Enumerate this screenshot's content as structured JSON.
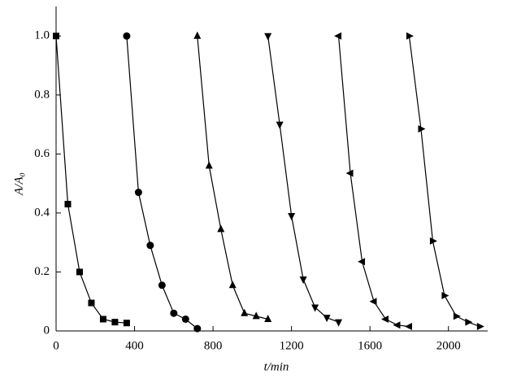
{
  "chart_data": {
    "type": "line",
    "xlabel": "t/min",
    "ylabel": "A/A₀",
    "xlim": [
      0,
      2200
    ],
    "ylim": [
      0,
      1.1
    ],
    "xticks": [
      0,
      400,
      800,
      1200,
      1600,
      2000
    ],
    "yticks": [
      0,
      0.2,
      0.4,
      0.6,
      0.8,
      {
        "value": 1,
        "label": "1.0"
      }
    ],
    "grid": false,
    "series": [
      {
        "marker": "square",
        "color": "#000000",
        "x": [
          0,
          60,
          120,
          180,
          240,
          300,
          360
        ],
        "values": [
          1.0,
          0.43,
          0.2,
          0.095,
          0.04,
          0.03,
          0.027
        ]
      },
      {
        "marker": "circle",
        "color": "#000000",
        "x": [
          360,
          420,
          480,
          540,
          600,
          660,
          720
        ],
        "values": [
          1.0,
          0.47,
          0.29,
          0.155,
          0.06,
          0.04,
          0.008
        ]
      },
      {
        "marker": "triangle-up",
        "color": "#000000",
        "x": [
          720,
          780,
          840,
          900,
          960,
          1020,
          1080
        ],
        "values": [
          1.0,
          0.56,
          0.345,
          0.155,
          0.06,
          0.05,
          0.04
        ]
      },
      {
        "marker": "triangle-down",
        "color": "#000000",
        "x": [
          1080,
          1140,
          1200,
          1260,
          1320,
          1380,
          1440
        ],
        "values": [
          1.0,
          0.7,
          0.39,
          0.175,
          0.08,
          0.045,
          0.03
        ]
      },
      {
        "marker": "triangle-left",
        "color": "#000000",
        "x": [
          1440,
          1500,
          1560,
          1620,
          1680,
          1740,
          1800
        ],
        "values": [
          1.0,
          0.535,
          0.235,
          0.1,
          0.04,
          0.02,
          0.015
        ]
      },
      {
        "marker": "triangle-right",
        "color": "#000000",
        "x": [
          1800,
          1860,
          1920,
          1980,
          2040,
          2100,
          2160
        ],
        "values": [
          1.0,
          0.685,
          0.305,
          0.12,
          0.05,
          0.03,
          0.015
        ]
      }
    ]
  }
}
